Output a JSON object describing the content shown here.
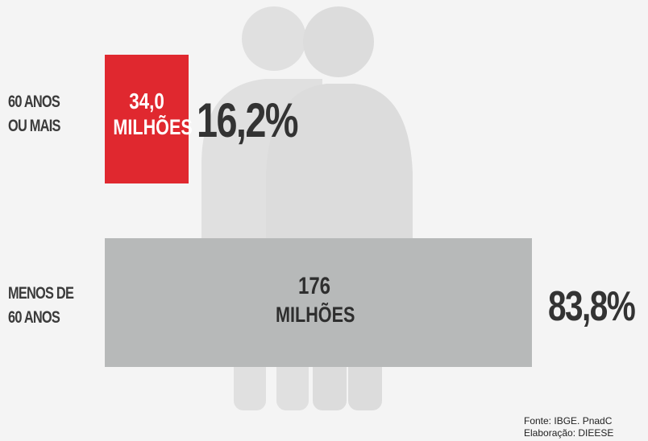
{
  "colors": {
    "background": "#f4f4f4",
    "silhouette": "#e0e0e0",
    "older_bar": "#e0282f",
    "younger_bar": "#b7b9b9"
  },
  "icons": [
    "man-silhouette-icon",
    "woman-silhouette-icon"
  ],
  "chart_data": {
    "type": "bar",
    "orientation": "horizontal",
    "categories": [
      "60 ANOS OU MAIS",
      "MENOS DE 60 ANOS"
    ],
    "values": [
      34.0,
      176
    ],
    "unit": "MILHÕES",
    "shares_percent": [
      16.2,
      83.8
    ],
    "rows": [
      {
        "label_lines": [
          "60 ANOS",
          "OU MAIS"
        ],
        "value": 34.0,
        "value_text": "34,0",
        "unit_text": "MILHÕES",
        "share_text": "16,2%",
        "color": "#e0282f"
      },
      {
        "label_lines": [
          "MENOS DE",
          "60 ANOS"
        ],
        "value": 176,
        "value_text": "176",
        "unit_text": "MILHÕES",
        "share_text": "83,8%",
        "color": "#b7b9b9"
      }
    ],
    "source_lines": [
      "Fonte: IBGE. PnadC",
      "Elaboração: DIEESE"
    ]
  }
}
